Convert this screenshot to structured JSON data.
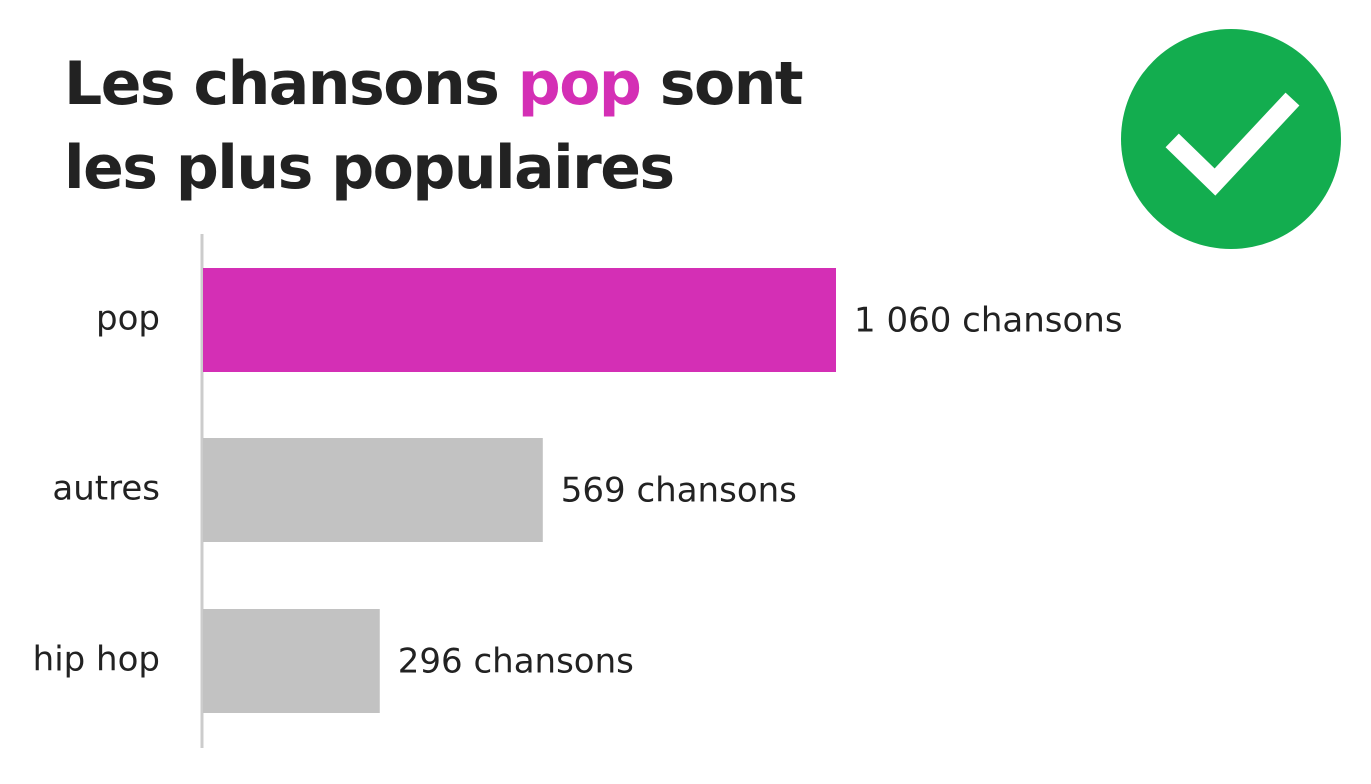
{
  "title": {
    "line1_before": "Les chansons ",
    "line1_highlight": "pop",
    "line1_after": " sont",
    "line2": "les plus populaires"
  },
  "badge": {
    "icon": "check-icon",
    "color": "#13AD4F"
  },
  "colors": {
    "highlight": "#D42FB5",
    "other": "#C2C2C2",
    "axis": "#CCCCCC"
  },
  "chart_data": {
    "type": "bar",
    "orientation": "horizontal",
    "categories": [
      "pop",
      "autres",
      "hip hop"
    ],
    "values": [
      1060,
      569,
      296
    ],
    "value_labels": [
      "1 060 chansons",
      "569 chansons",
      "296 chansons"
    ],
    "highlight_category": "pop",
    "xlabel": "",
    "ylabel": "",
    "xlim": [
      0,
      1060
    ],
    "grid": false,
    "legend": "none"
  }
}
